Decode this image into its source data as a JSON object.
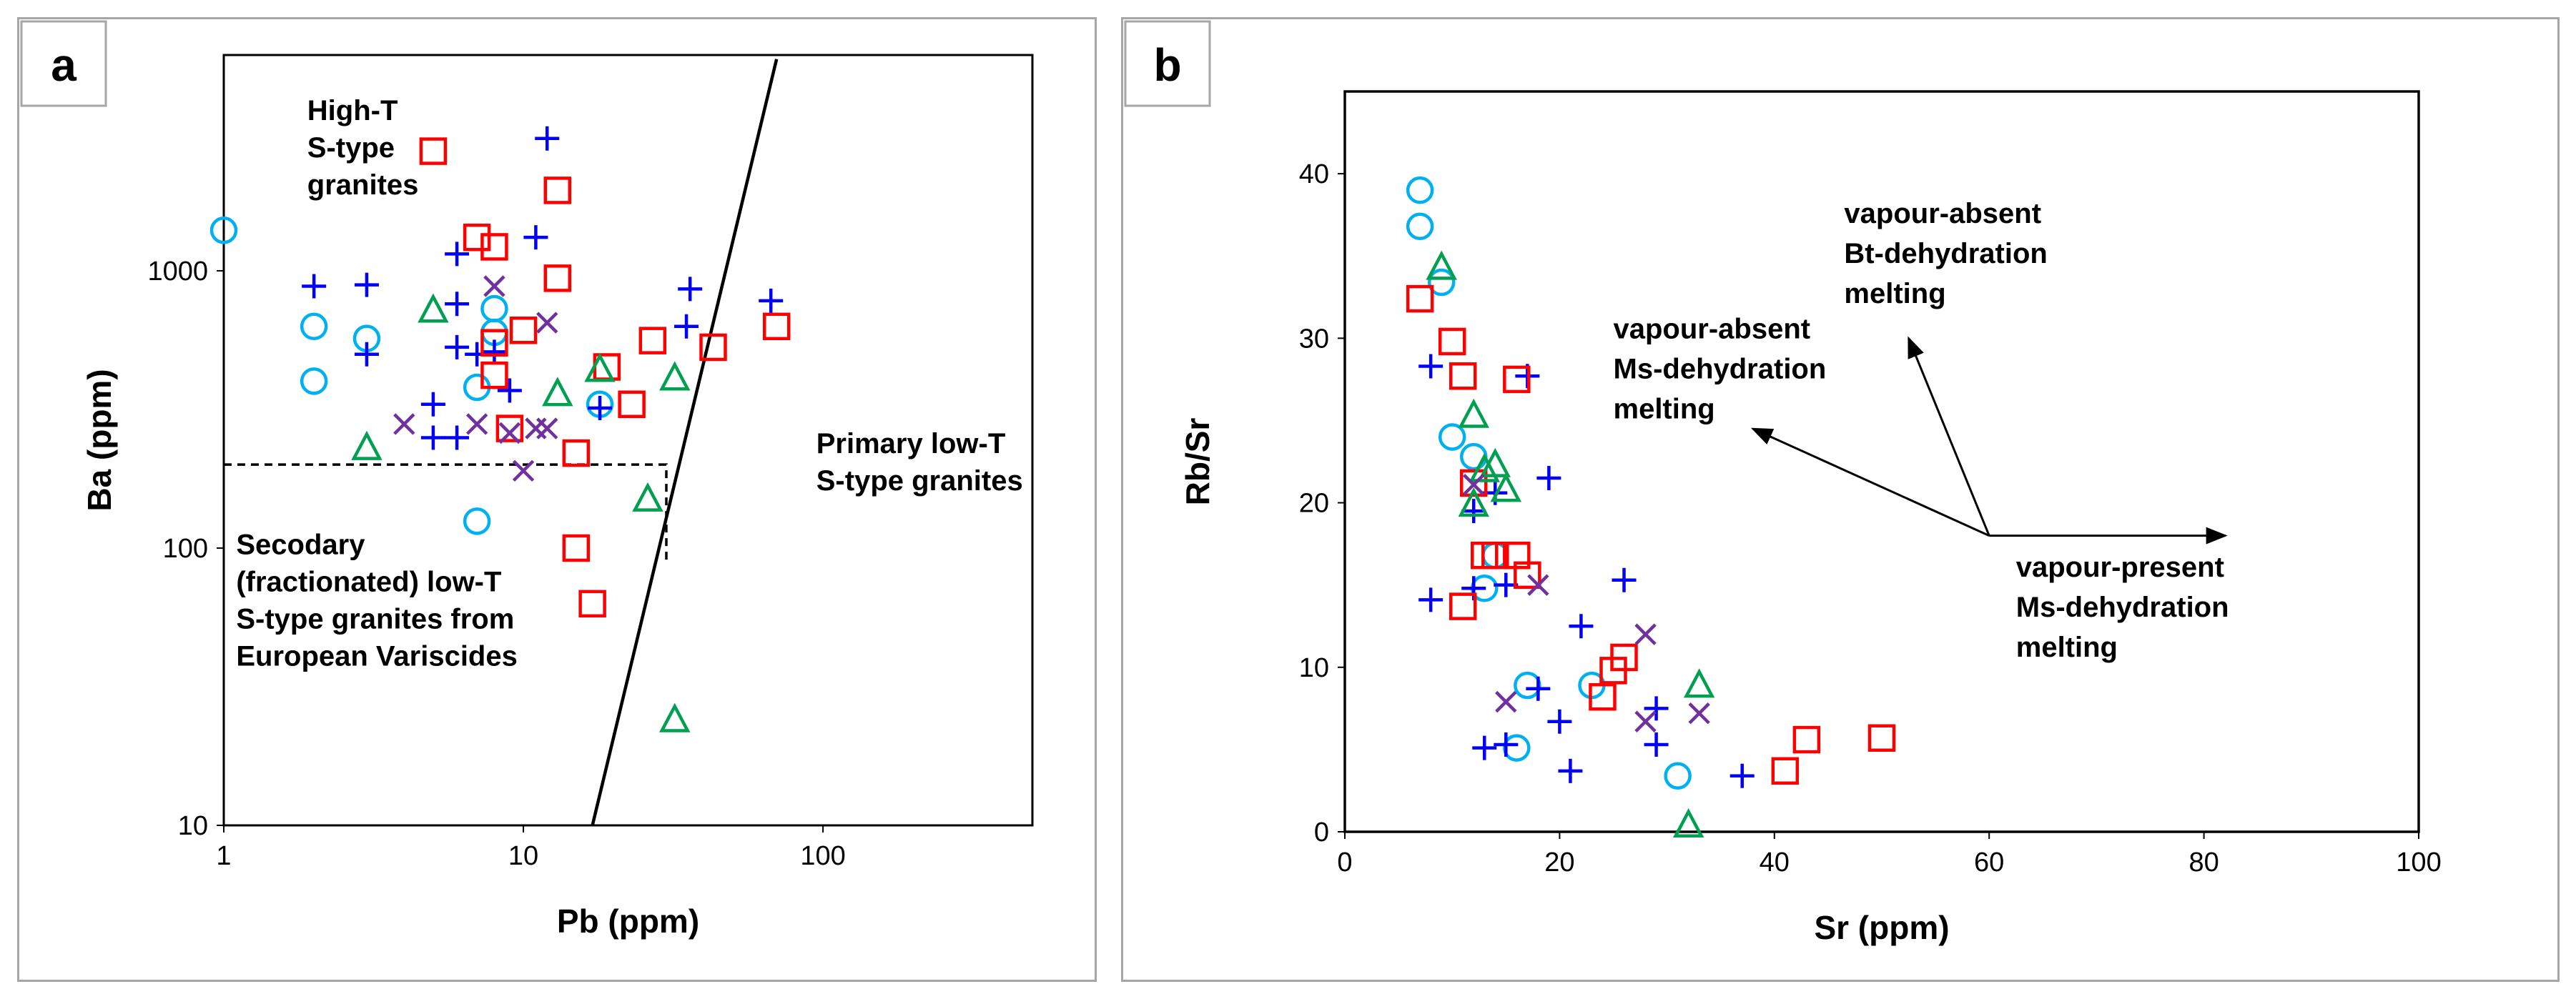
{
  "chart_data": [
    {
      "panel_label": "a",
      "type": "scatter",
      "xlabel": "Pb (ppm)",
      "ylabel": "Ba (ppm)",
      "xscale": "log",
      "yscale": "log",
      "xlim": [
        1,
        500
      ],
      "ylim": [
        10,
        6000
      ],
      "x_ticks": [
        1,
        10,
        100
      ],
      "x_tick_labels": [
        "1",
        "10",
        "100"
      ],
      "y_ticks": [
        10,
        100,
        1000
      ],
      "y_tick_labels": [
        "10",
        "100",
        "1000"
      ],
      "grid": false,
      "annotations": [
        {
          "lines": [
            "High-T",
            "S-type",
            "granites"
          ],
          "x": 1.9,
          "y": 3500
        },
        {
          "lines": [
            "Primary low-T",
            "S-type granites"
          ],
          "x": 95,
          "y": 220
        },
        {
          "lines": [
            "Secodary",
            "(fractionated) low-T",
            "S-type granites from",
            "European Variscides"
          ],
          "x": 1.1,
          "y": 95
        }
      ],
      "lines": [
        {
          "name": "field-boundary",
          "style": "solid",
          "points": [
            [
              17,
              10
            ],
            [
              70,
              5800
            ]
          ]
        },
        {
          "name": "secondary-field",
          "style": "dashed",
          "points": [
            [
              1,
              200
            ],
            [
              30,
              200
            ],
            [
              30,
              88
            ]
          ]
        }
      ],
      "series": [
        {
          "marker": "circle",
          "color": "#00b0f0",
          "points": [
            [
              1,
              1400
            ],
            [
              2,
              630
            ],
            [
              2,
              400
            ],
            [
              3,
              570
            ],
            [
              7,
              380
            ],
            [
              7,
              125
            ],
            [
              8,
              600
            ],
            [
              8,
              730
            ],
            [
              18,
              330
            ]
          ]
        },
        {
          "marker": "plus",
          "color": "#0000ff",
          "points": [
            [
              2,
              880
            ],
            [
              3,
              890
            ],
            [
              3,
              500
            ],
            [
              5,
              330
            ],
            [
              5,
              250
            ],
            [
              6,
              1150
            ],
            [
              6,
              760
            ],
            [
              6,
              530
            ],
            [
              6,
              250
            ],
            [
              7,
              500
            ],
            [
              8,
              510
            ],
            [
              9,
              370
            ],
            [
              11,
              1320
            ],
            [
              12,
              3000
            ],
            [
              18,
              320
            ],
            [
              35,
              630
            ],
            [
              36,
              860
            ],
            [
              67,
              780
            ]
          ]
        },
        {
          "marker": "square",
          "color": "#ff0000",
          "points": [
            [
              5,
              2700
            ],
            [
              7,
              1320
            ],
            [
              8,
              1220
            ],
            [
              8,
              550
            ],
            [
              8,
              420
            ],
            [
              9,
              270
            ],
            [
              10,
              610
            ],
            [
              13,
              1950
            ],
            [
              13,
              940
            ],
            [
              15,
              220
            ],
            [
              15,
              100
            ],
            [
              17,
              63
            ],
            [
              19,
              450
            ],
            [
              23,
              330
            ],
            [
              27,
              560
            ],
            [
              43,
              530
            ],
            [
              70,
              630
            ]
          ]
        },
        {
          "marker": "triangle",
          "color": "#00a050",
          "points": [
            [
              3,
              230
            ],
            [
              5,
              720
            ],
            [
              13,
              360
            ],
            [
              18,
              440
            ],
            [
              26,
              150
            ],
            [
              32,
              410
            ],
            [
              32,
              24
            ]
          ]
        },
        {
          "marker": "x",
          "color": "#7030a0",
          "points": [
            [
              4,
              280
            ],
            [
              7,
              280
            ],
            [
              8,
              880
            ],
            [
              9,
              260
            ],
            [
              10,
              190
            ],
            [
              11,
              270
            ],
            [
              12,
              650
            ],
            [
              12,
              270
            ]
          ]
        }
      ]
    },
    {
      "panel_label": "b",
      "type": "scatter",
      "xlabel": "Sr (ppm)",
      "ylabel": "Rb/Sr",
      "xlim": [
        0,
        100
      ],
      "ylim": [
        0,
        45
      ],
      "x_ticks": [
        0,
        20,
        40,
        60,
        80,
        100
      ],
      "x_tick_labels": [
        "0",
        "20",
        "40",
        "60",
        "80",
        "100"
      ],
      "y_ticks": [
        0,
        10,
        20,
        30,
        40
      ],
      "y_tick_labels": [
        "0",
        "10",
        "20",
        "30",
        "40"
      ],
      "grid": false,
      "annotations": [
        {
          "lines": [
            "vapour-absent",
            "Bt-dehydration",
            "melting"
          ],
          "x": 46.5,
          "y": 37
        },
        {
          "lines": [
            "vapour-absent",
            "Ms-dehydration",
            "melting"
          ],
          "x": 25,
          "y": 30
        },
        {
          "lines": [
            "vapour-present",
            "Ms-dehydration",
            "melting"
          ],
          "x": 62.5,
          "y": 15.5
        }
      ],
      "arrows": [
        {
          "from": [
            60,
            18
          ],
          "to": [
            52.5,
            30
          ]
        },
        {
          "from": [
            60,
            18
          ],
          "to": [
            38,
            24.5
          ]
        },
        {
          "from": [
            60,
            18
          ],
          "to": [
            82,
            18
          ]
        }
      ],
      "series": [
        {
          "marker": "circle",
          "color": "#00b0f0",
          "points": [
            [
              7,
              39
            ],
            [
              7,
              36.8
            ],
            [
              9,
              33.4
            ],
            [
              10,
              24
            ],
            [
              12,
              22.8
            ],
            [
              13,
              14.8
            ],
            [
              14,
              16.8
            ],
            [
              16,
              5.1
            ],
            [
              17,
              8.9
            ],
            [
              23,
              8.9
            ],
            [
              31,
              3.4
            ]
          ]
        },
        {
          "marker": "plus",
          "color": "#0000ff",
          "points": [
            [
              8,
              28.3
            ],
            [
              8,
              14.1
            ],
            [
              12,
              19.5
            ],
            [
              12,
              14.8
            ],
            [
              13,
              5.1
            ],
            [
              14,
              20.6
            ],
            [
              15,
              15
            ],
            [
              15,
              5.3
            ],
            [
              17,
              27.7
            ],
            [
              18,
              8.7
            ],
            [
              19,
              21.5
            ],
            [
              20,
              6.7
            ],
            [
              21,
              3.7
            ],
            [
              22,
              12.5
            ],
            [
              26,
              15.3
            ],
            [
              29,
              7.5
            ],
            [
              29,
              5.3
            ],
            [
              37,
              3.4
            ]
          ]
        },
        {
          "marker": "square",
          "color": "#ff0000",
          "points": [
            [
              7,
              32.4
            ],
            [
              10,
              29.8
            ],
            [
              11,
              27.7
            ],
            [
              11,
              13.7
            ],
            [
              12,
              21.2
            ],
            [
              13,
              16.8
            ],
            [
              14,
              16.8
            ],
            [
              16,
              27.5
            ],
            [
              16,
              16.8
            ],
            [
              17,
              15.6
            ],
            [
              24,
              8.2
            ],
            [
              25,
              9.8
            ],
            [
              26,
              10.6
            ],
            [
              41,
              3.7
            ],
            [
              43,
              5.6
            ],
            [
              50,
              5.7
            ]
          ]
        },
        {
          "marker": "triangle",
          "color": "#00a050",
          "points": [
            [
              9,
              34.3
            ],
            [
              12,
              25.3
            ],
            [
              12,
              19.9
            ],
            [
              13,
              22
            ],
            [
              14,
              22.3
            ],
            [
              15,
              20.8
            ],
            [
              32,
              0.4
            ],
            [
              33,
              8.9
            ]
          ]
        },
        {
          "marker": "x",
          "color": "#7030a0",
          "points": [
            [
              12,
              21.1
            ],
            [
              15,
              7.9
            ],
            [
              18,
              15
            ],
            [
              28,
              6.7
            ],
            [
              28,
              12
            ],
            [
              33,
              7.2
            ]
          ]
        }
      ]
    }
  ]
}
